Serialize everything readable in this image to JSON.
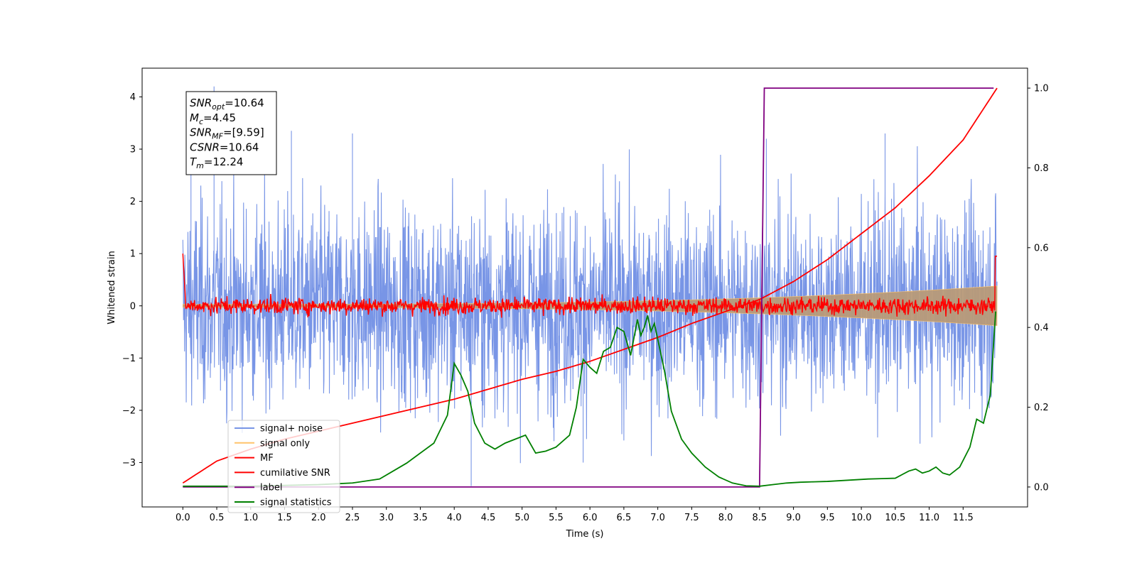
{
  "chart_data": {
    "type": "line",
    "xlabel": "Time (s)",
    "ylabel": "Whitened strain",
    "xlim": [
      -0.6,
      12.45
    ],
    "ylim_left": [
      -3.85,
      4.55
    ],
    "ylim_right": [
      -0.05,
      1.05
    ],
    "x_ticks": [
      0.0,
      0.5,
      1.0,
      1.5,
      2.0,
      2.5,
      3.0,
      3.5,
      4.0,
      4.5,
      5.0,
      5.5,
      6.0,
      6.5,
      7.0,
      7.5,
      8.0,
      8.5,
      9.0,
      9.5,
      10.0,
      10.5,
      11.0,
      11.5
    ],
    "x_tick_labels": [
      "0.0",
      "0.5",
      "1.0",
      "1.5",
      "2.0",
      "2.5",
      "3.0",
      "3.5",
      "4.0",
      "4.5",
      "5.0",
      "5.5",
      "6.0",
      "6.5",
      "7.0",
      "7.5",
      "8.0",
      "8.5",
      "9.0",
      "9.5",
      "10.0",
      "10.5",
      "11.0",
      "11.5"
    ],
    "y_ticks_left": [
      -3,
      -2,
      -1,
      0,
      1,
      2,
      3,
      4
    ],
    "y_tick_labels_left": [
      "−3",
      "−2",
      "−1",
      "0",
      "1",
      "2",
      "3",
      "4"
    ],
    "y_ticks_right": [
      0.0,
      0.2,
      0.4,
      0.6,
      0.8,
      1.0
    ],
    "y_tick_labels_right": [
      "0.0",
      "0.2",
      "0.4",
      "0.6",
      "0.8",
      "1.0"
    ],
    "grid": false,
    "legend_position": "bottom-left",
    "annotation": [
      {
        "base": "SNR",
        "sub": "opt",
        "rest": "=10.64"
      },
      {
        "base": "M",
        "sub": "c",
        "rest": "=4.45"
      },
      {
        "base": "SNR",
        "sub": "MF",
        "rest": "=[9.59]"
      },
      {
        "base": "CSNR",
        "sub": "",
        "rest": "=10.64"
      },
      {
        "base": "T",
        "sub": "m",
        "rest": "=12.24"
      }
    ],
    "series": [
      {
        "name": "signal+ noise",
        "axis": "left",
        "color": "#7895e6",
        "kind": "noise",
        "x_range": [
          0.0,
          12.0
        ],
        "typical_amplitude": 1.0,
        "min": -3.45,
        "max": 4.2
      },
      {
        "name": "signal only",
        "axis": "left",
        "color": "#ffc46a",
        "kind": "chirp",
        "x_range": [
          0.0,
          12.0
        ],
        "start_amplitude": 0.03,
        "end_amplitude": 0.38
      },
      {
        "name": "MF",
        "axis": "left",
        "color": "#ff0000",
        "kind": "noise",
        "x_range": [
          0.0,
          12.0
        ],
        "start_value": 1.0,
        "typical_amplitude": 0.1
      },
      {
        "name": "cumilative SNR",
        "axis": "right",
        "color": "#ff0000",
        "x": [
          0.0,
          0.5,
          1.0,
          1.5,
          2.0,
          2.5,
          3.0,
          3.5,
          4.0,
          4.5,
          5.0,
          5.5,
          6.0,
          6.5,
          7.0,
          7.5,
          8.0,
          8.5,
          9.0,
          9.5,
          10.0,
          10.5,
          11.0,
          11.5,
          12.0
        ],
        "values": [
          0.01,
          0.065,
          0.095,
          0.12,
          0.14,
          0.16,
          0.18,
          0.2,
          0.22,
          0.245,
          0.27,
          0.29,
          0.315,
          0.345,
          0.375,
          0.41,
          0.44,
          0.47,
          0.515,
          0.57,
          0.635,
          0.7,
          0.78,
          0.87,
          1.0
        ]
      },
      {
        "name": "label",
        "axis": "right",
        "color": "#800080",
        "x": [
          0.0,
          8.5,
          8.57,
          11.95
        ],
        "values": [
          0.0,
          0.0,
          1.0,
          1.0
        ]
      },
      {
        "name": "signal statistics",
        "axis": "right",
        "color": "#008000",
        "x": [
          0.0,
          1.0,
          2.0,
          2.5,
          2.9,
          3.1,
          3.3,
          3.5,
          3.7,
          3.9,
          4.0,
          4.1,
          4.2,
          4.3,
          4.45,
          4.6,
          4.75,
          4.9,
          5.05,
          5.2,
          5.35,
          5.5,
          5.7,
          5.8,
          5.9,
          6.0,
          6.1,
          6.2,
          6.3,
          6.4,
          6.5,
          6.6,
          6.7,
          6.75,
          6.8,
          6.85,
          6.9,
          6.95,
          7.0,
          7.1,
          7.2,
          7.35,
          7.5,
          7.7,
          7.9,
          8.1,
          8.3,
          8.5,
          8.7,
          8.9,
          9.1,
          9.3,
          9.5,
          9.7,
          9.9,
          10.1,
          10.3,
          10.5,
          10.7,
          10.8,
          10.9,
          11.0,
          11.1,
          11.2,
          11.3,
          11.45,
          11.6,
          11.7,
          11.8,
          11.9,
          11.98
        ],
        "values": [
          0.002,
          0.002,
          0.006,
          0.01,
          0.02,
          0.04,
          0.06,
          0.085,
          0.11,
          0.18,
          0.31,
          0.28,
          0.24,
          0.16,
          0.11,
          0.095,
          0.11,
          0.12,
          0.13,
          0.085,
          0.09,
          0.1,
          0.13,
          0.2,
          0.32,
          0.3,
          0.285,
          0.34,
          0.35,
          0.4,
          0.39,
          0.33,
          0.42,
          0.38,
          0.4,
          0.43,
          0.39,
          0.41,
          0.37,
          0.29,
          0.19,
          0.12,
          0.085,
          0.05,
          0.025,
          0.01,
          0.003,
          0.002,
          0.006,
          0.01,
          0.012,
          0.013,
          0.014,
          0.016,
          0.018,
          0.02,
          0.021,
          0.022,
          0.04,
          0.045,
          0.035,
          0.04,
          0.05,
          0.035,
          0.03,
          0.05,
          0.1,
          0.17,
          0.16,
          0.23,
          0.44
        ]
      }
    ]
  }
}
